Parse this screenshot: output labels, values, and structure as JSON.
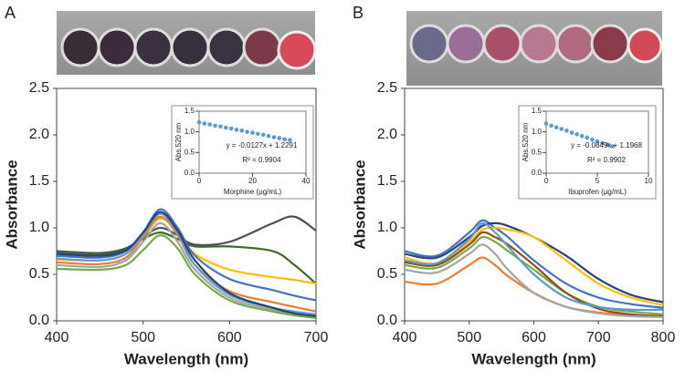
{
  "chart_data": [
    {
      "type": "line",
      "panel_label": "A",
      "xlabel": "Wavelength (nm)",
      "ylabel": "Absorbance",
      "x": [
        400,
        450,
        480,
        500,
        520,
        540,
        560,
        600,
        650,
        675,
        700
      ],
      "series": [
        {
          "color": "#50505f",
          "values": [
            0.75,
            0.73,
            0.78,
            0.9,
            1.0,
            0.92,
            0.82,
            0.85,
            1.05,
            1.12,
            0.97
          ]
        },
        {
          "color": "#3d6b22",
          "values": [
            0.73,
            0.71,
            0.77,
            0.88,
            0.95,
            0.88,
            0.8,
            0.8,
            0.75,
            0.6,
            0.4
          ]
        },
        {
          "color": "#ffc000",
          "values": [
            0.66,
            0.65,
            0.72,
            0.9,
            1.1,
            0.95,
            0.72,
            0.55,
            0.47,
            0.44,
            0.4
          ]
        },
        {
          "color": "#4472c4",
          "values": [
            0.7,
            0.68,
            0.75,
            0.95,
            1.2,
            1.0,
            0.7,
            0.45,
            0.33,
            0.27,
            0.22
          ]
        },
        {
          "color": "#ed7d31",
          "values": [
            0.63,
            0.61,
            0.68,
            0.9,
            1.12,
            0.92,
            0.6,
            0.32,
            0.2,
            0.15,
            0.1
          ]
        },
        {
          "color": "#a5a5a5",
          "values": [
            0.6,
            0.58,
            0.65,
            0.85,
            1.05,
            0.85,
            0.55,
            0.25,
            0.12,
            0.08,
            0.05
          ]
        },
        {
          "color": "#5b9bd5",
          "values": [
            0.67,
            0.65,
            0.72,
            0.93,
            1.15,
            0.95,
            0.6,
            0.28,
            0.14,
            0.1,
            0.07
          ]
        },
        {
          "color": "#70ad47",
          "values": [
            0.56,
            0.55,
            0.6,
            0.76,
            0.92,
            0.78,
            0.5,
            0.22,
            0.1,
            0.06,
            0.03
          ]
        },
        {
          "color": "#264478",
          "values": [
            0.72,
            0.7,
            0.76,
            0.95,
            1.17,
            0.97,
            0.65,
            0.3,
            0.14,
            0.08,
            0.05
          ]
        }
      ],
      "xlim": [
        400,
        700
      ],
      "xticks": [
        400,
        500,
        600,
        700
      ],
      "ylim": [
        0,
        2.5
      ],
      "yticks": [
        {
          "value": 0,
          "label": "0.0"
        },
        {
          "value": 0.5,
          "label": "0.5"
        },
        {
          "value": 1,
          "label": "1.0"
        },
        {
          "value": 1.5,
          "label": "1.5"
        },
        {
          "value": 2,
          "label": "2.0"
        },
        {
          "value": 2.5,
          "label": "2.5"
        }
      ]
    },
    {
      "type": "scatter",
      "xlabel": "Morphine (µg/mL)",
      "ylabel": "Abs.520 nm",
      "color": "#5b9bd5",
      "annotations": [
        "y = -0.0127x + 1.2291",
        "R² = 0.9904"
      ],
      "x": [
        0,
        2,
        4,
        6,
        8,
        10,
        12,
        14,
        16,
        18,
        20,
        22,
        24,
        26,
        28,
        30,
        32,
        34
      ],
      "values": [
        1.23,
        1.2,
        1.18,
        1.15,
        1.13,
        1.1,
        1.08,
        1.05,
        1.03,
        1.0,
        0.98,
        0.95,
        0.93,
        0.9,
        0.87,
        0.85,
        0.82,
        0.8
      ],
      "xlim": [
        0,
        40
      ],
      "xticks": [
        0,
        20,
        40
      ],
      "ylim": [
        0,
        1.5
      ],
      "yticks": [
        {
          "value": 0,
          "label": "0.0"
        },
        {
          "value": 0.5,
          "label": "0.5"
        },
        {
          "value": 1,
          "label": "1.0"
        },
        {
          "value": 1.5,
          "label": "1.5"
        }
      ]
    },
    {
      "type": "line",
      "panel_label": "B",
      "xlabel": "Wavelength (nm)",
      "ylabel": "Absorbance",
      "x": [
        400,
        450,
        500,
        520,
        540,
        560,
        600,
        650,
        700,
        750,
        800
      ],
      "series": [
        {
          "color": "#4472c4",
          "values": [
            0.75,
            0.7,
            0.95,
            1.08,
            1.0,
            0.9,
            0.65,
            0.4,
            0.25,
            0.18,
            0.14
          ]
        },
        {
          "color": "#264478",
          "values": [
            0.72,
            0.68,
            0.9,
            1.02,
            1.05,
            1.02,
            0.9,
            0.7,
            0.45,
            0.28,
            0.2
          ]
        },
        {
          "color": "#ffc000",
          "values": [
            0.68,
            0.62,
            0.85,
            0.98,
            1.0,
            0.98,
            0.9,
            0.65,
            0.4,
            0.25,
            0.17
          ]
        },
        {
          "color": "#70ad47",
          "values": [
            0.6,
            0.57,
            0.78,
            0.9,
            0.85,
            0.75,
            0.55,
            0.3,
            0.15,
            0.1,
            0.07
          ]
        },
        {
          "color": "#ed7d31",
          "values": [
            0.42,
            0.4,
            0.6,
            0.68,
            0.6,
            0.48,
            0.3,
            0.15,
            0.09,
            0.06,
            0.05
          ]
        },
        {
          "color": "#9e480e",
          "values": [
            0.63,
            0.6,
            0.82,
            0.95,
            0.9,
            0.82,
            0.6,
            0.3,
            0.13,
            0.07,
            0.05
          ]
        },
        {
          "color": "#a5a5a5",
          "values": [
            0.55,
            0.52,
            0.72,
            0.82,
            0.72,
            0.55,
            0.3,
            0.15,
            0.08,
            0.05,
            0.04
          ]
        },
        {
          "color": "#5b9bd5",
          "values": [
            0.65,
            0.62,
            0.88,
            1.05,
            0.95,
            0.8,
            0.5,
            0.25,
            0.15,
            0.12,
            0.12
          ]
        }
      ],
      "xlim": [
        400,
        800
      ],
      "xticks": [
        400,
        500,
        600,
        700,
        800
      ],
      "ylim": [
        0,
        2.5
      ],
      "yticks": [
        {
          "value": 0,
          "label": "0.0"
        },
        {
          "value": 0.5,
          "label": "0.5"
        },
        {
          "value": 1,
          "label": "1.0"
        },
        {
          "value": 1.5,
          "label": "1.5"
        },
        {
          "value": 2,
          "label": "2.0"
        },
        {
          "value": 2.5,
          "label": "2.5"
        }
      ]
    },
    {
      "type": "scatter",
      "xlabel": "Ibuprofen (µg/mL)",
      "ylabel": "Abs.520 nm",
      "color": "#5b9bd5",
      "annotations": [
        "y = -0.0849x + 1.1968",
        "R² = 0.9902"
      ],
      "x": [
        0,
        0.5,
        1,
        1.5,
        2,
        2.5,
        3,
        3.5,
        4,
        4.5,
        5,
        5.5,
        6,
        6.5
      ],
      "values": [
        1.2,
        1.15,
        1.11,
        1.07,
        1.03,
        0.98,
        0.94,
        0.9,
        0.86,
        0.81,
        0.77,
        0.73,
        0.69,
        0.65
      ],
      "xlim": [
        0,
        10
      ],
      "xticks": [
        0,
        5,
        10
      ],
      "ylim": [
        0,
        1.5
      ],
      "yticks": [
        {
          "value": 0,
          "label": "0.0"
        },
        {
          "value": 0.5,
          "label": "0.5"
        },
        {
          "value": 1,
          "label": "1.0"
        },
        {
          "value": 1.5,
          "label": "1.5"
        }
      ]
    }
  ]
}
